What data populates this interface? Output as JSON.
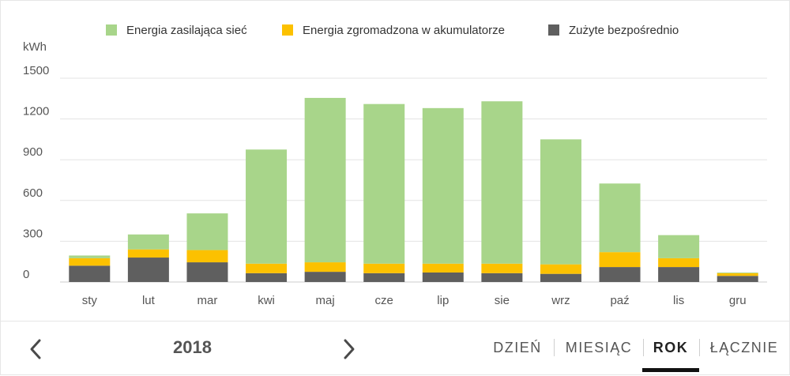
{
  "chart_data": {
    "type": "bar",
    "stacked": true,
    "ylabel": "kWh",
    "ylim": [
      0,
      1500
    ],
    "yticks": [
      0,
      300,
      600,
      900,
      1200,
      1500
    ],
    "grid": true,
    "legend_position": "top",
    "categories": [
      "sty",
      "lut",
      "mar",
      "kwi",
      "maj",
      "cze",
      "lip",
      "sie",
      "wrz",
      "paź",
      "lis",
      "gru"
    ],
    "series": [
      {
        "name": "Zużyte bezpośrednio",
        "color": "#5f5f5f",
        "values": [
          120,
          180,
          145,
          65,
          75,
          65,
          70,
          65,
          60,
          110,
          110,
          45
        ]
      },
      {
        "name": "Energia zgromadzona w akumulatorze",
        "color": "#fcc100",
        "values": [
          55,
          60,
          90,
          70,
          70,
          70,
          65,
          70,
          70,
          110,
          65,
          20
        ]
      },
      {
        "name": "Energia zasilająca sieć",
        "color": "#a8d58a",
        "values": [
          20,
          110,
          270,
          840,
          1210,
          1175,
          1145,
          1195,
          920,
          505,
          170,
          5
        ]
      }
    ]
  },
  "legend_order": [
    2,
    1,
    0
  ],
  "footer": {
    "year": "2018",
    "prev_icon": "chevron-left-icon",
    "next_icon": "chevron-right-icon",
    "tabs": [
      {
        "label": "DZIEŃ",
        "active": false
      },
      {
        "label": "MIESIĄC",
        "active": false
      },
      {
        "label": "ROK",
        "active": true
      },
      {
        "label": "ŁĄCZNIE",
        "active": false
      }
    ]
  },
  "colors": {
    "grid": "#e3e3e3",
    "axis_text": "#555555",
    "active_underline": "#111111"
  }
}
